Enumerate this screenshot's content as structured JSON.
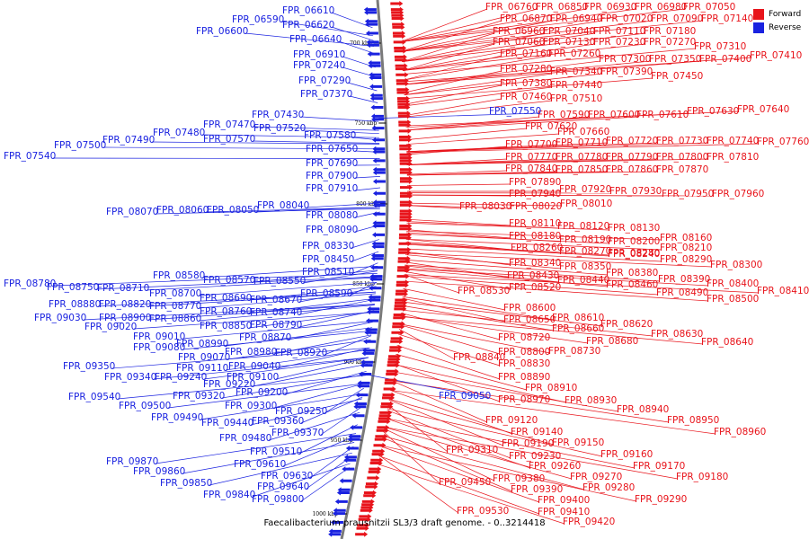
{
  "caption": "Faecalibacterium prausnitzii SL3/3 draft genome. - 0..3214418",
  "legend": [
    {
      "label": "Forward",
      "color": "#e8141b"
    },
    {
      "label": "Reverse",
      "color": "#1a22e0"
    }
  ],
  "colors": {
    "forward": "#e8141b",
    "reverse": "#1a22e0",
    "backbone": "#7a7a7a"
  },
  "ticks": [
    "700 kbp",
    "750 kbp",
    "800 kbp",
    "850 kbp",
    "900 kbp",
    "950 kbp",
    "1000 kbp"
  ],
  "forward_labels": [
    "FPR_06760",
    "FPR_06850",
    "FPR_06930",
    "FPR_06980",
    "FPR_07050",
    "FPR_06870",
    "FPR_06940",
    "FPR_07020",
    "FPR_07090",
    "FPR_07140",
    "FPR_06960",
    "FPR_07040",
    "FPR_07110",
    "FPR_07180",
    "FPR_07060",
    "FPR_07130",
    "FPR_07230",
    "FPR_07270",
    "FPR_07160",
    "FPR_07260",
    "FPR_07310",
    "FPR_07300",
    "FPR_07350",
    "FPR_07400",
    "FPR_07410",
    "FPR_07280",
    "FPR_07340",
    "FPR_07390",
    "FPR_07450",
    "FPR_07380",
    "FPR_07440",
    "FPR_07460",
    "FPR_07510",
    "FPR_07590",
    "FPR_07600",
    "FPR_07610",
    "FPR_07630",
    "FPR_07640",
    "FPR_07620",
    "FPR_07660",
    "FPR_07700",
    "FPR_07710",
    "FPR_07720",
    "FPR_07730",
    "FPR_07740",
    "FPR_07760",
    "FPR_07770",
    "FPR_07780",
    "FPR_07790",
    "FPR_07800",
    "FPR_07810",
    "FPR_07840",
    "FPR_07850",
    "FPR_07860",
    "FPR_07870",
    "FPR_07890",
    "FPR_07940",
    "FPR_07920",
    "FPR_07930",
    "FPR_07950",
    "FPR_07960",
    "FPR_08030",
    "FPR_08020",
    "FPR_08010",
    "FPR_08110",
    "FPR_08120",
    "FPR_08130",
    "FPR_08180",
    "FPR_08190",
    "FPR_08200",
    "FPR_08160",
    "FPR_08260",
    "FPR_08270",
    "FPR_08240",
    "FPR_08210",
    "FPR_08280",
    "FPR_08290",
    "FPR_08340",
    "FPR_08350",
    "FPR_08300",
    "FPR_08430",
    "FPR_08380",
    "FPR_08440",
    "FPR_08390",
    "FPR_08460",
    "FPR_08400",
    "FPR_08520",
    "FPR_08490",
    "FPR_08410",
    "FPR_08530",
    "FPR_08500",
    "FPR_08600",
    "FPR_08610",
    "FPR_08650",
    "FPR_08620",
    "FPR_08660",
    "FPR_08680",
    "FPR_08630",
    "FPR_08720",
    "FPR_08640",
    "FPR_08730",
    "FPR_08800",
    "FPR_08840",
    "FPR_08830",
    "FPR_08890",
    "FPR_08910",
    "FPR_08970",
    "FPR_08930",
    "FPR_08940",
    "FPR_08950",
    "FPR_08960",
    "FPR_09120",
    "FPR_09140",
    "FPR_09190",
    "FPR_09150",
    "FPR_09160",
    "FPR_09230",
    "FPR_09170",
    "FPR_09310",
    "FPR_09260",
    "FPR_09180",
    "FPR_09270",
    "FPR_09380",
    "FPR_09450",
    "FPR_09390",
    "FPR_09280",
    "FPR_09400",
    "FPR_09290",
    "FPR_09530",
    "FPR_09410",
    "FPR_09420"
  ],
  "reverse_labels": [
    "FPR_06610",
    "FPR_06590",
    "FPR_06620",
    "FPR_06600",
    "FPR_06640",
    "FPR_06910",
    "FPR_07240",
    "FPR_07290",
    "FPR_07370",
    "FPR_07550",
    "FPR_07430",
    "FPR_07470",
    "FPR_07520",
    "FPR_07480",
    "FPR_07490",
    "FPR_07570",
    "FPR_07580",
    "FPR_07500",
    "FPR_07540",
    "FPR_07650",
    "FPR_07690",
    "FPR_07900",
    "FPR_07910",
    "FPR_08040",
    "FPR_08070",
    "FPR_08060",
    "FPR_08050",
    "FPR_08080",
    "FPR_08090",
    "FPR_08330",
    "FPR_08450",
    "FPR_08510",
    "FPR_08580",
    "FPR_08570",
    "FPR_08550",
    "FPR_08780",
    "FPR_08750",
    "FPR_08710",
    "FPR_08590",
    "FPR_08700",
    "FPR_08690",
    "FPR_08670",
    "FPR_08880",
    "FPR_08820",
    "FPR_08770",
    "FPR_08760",
    "FPR_08740",
    "FPR_09030",
    "FPR_08900",
    "FPR_08860",
    "FPR_08850",
    "FPR_08790",
    "FPR_09020",
    "FPR_08870",
    "FPR_09010",
    "FPR_08990",
    "FPR_09080",
    "FPR_08980",
    "FPR_08920",
    "FPR_09070",
    "FPR_09040",
    "FPR_09110",
    "FPR_09100",
    "FPR_09350",
    "FPR_09340",
    "FPR_09240",
    "FPR_09220",
    "FPR_09320",
    "FPR_09200",
    "FPR_09050",
    "FPR_09540",
    "FPR_09500",
    "FPR_09300",
    "FPR_09250",
    "FPR_09490",
    "FPR_09440",
    "FPR_09360",
    "FPR_09370",
    "FPR_09480",
    "FPR_09510",
    "FPR_09610",
    "FPR_09870",
    "FPR_09860",
    "FPR_09630",
    "FPR_09850",
    "FPR_09640",
    "FPR_09840",
    "FPR_09800"
  ]
}
